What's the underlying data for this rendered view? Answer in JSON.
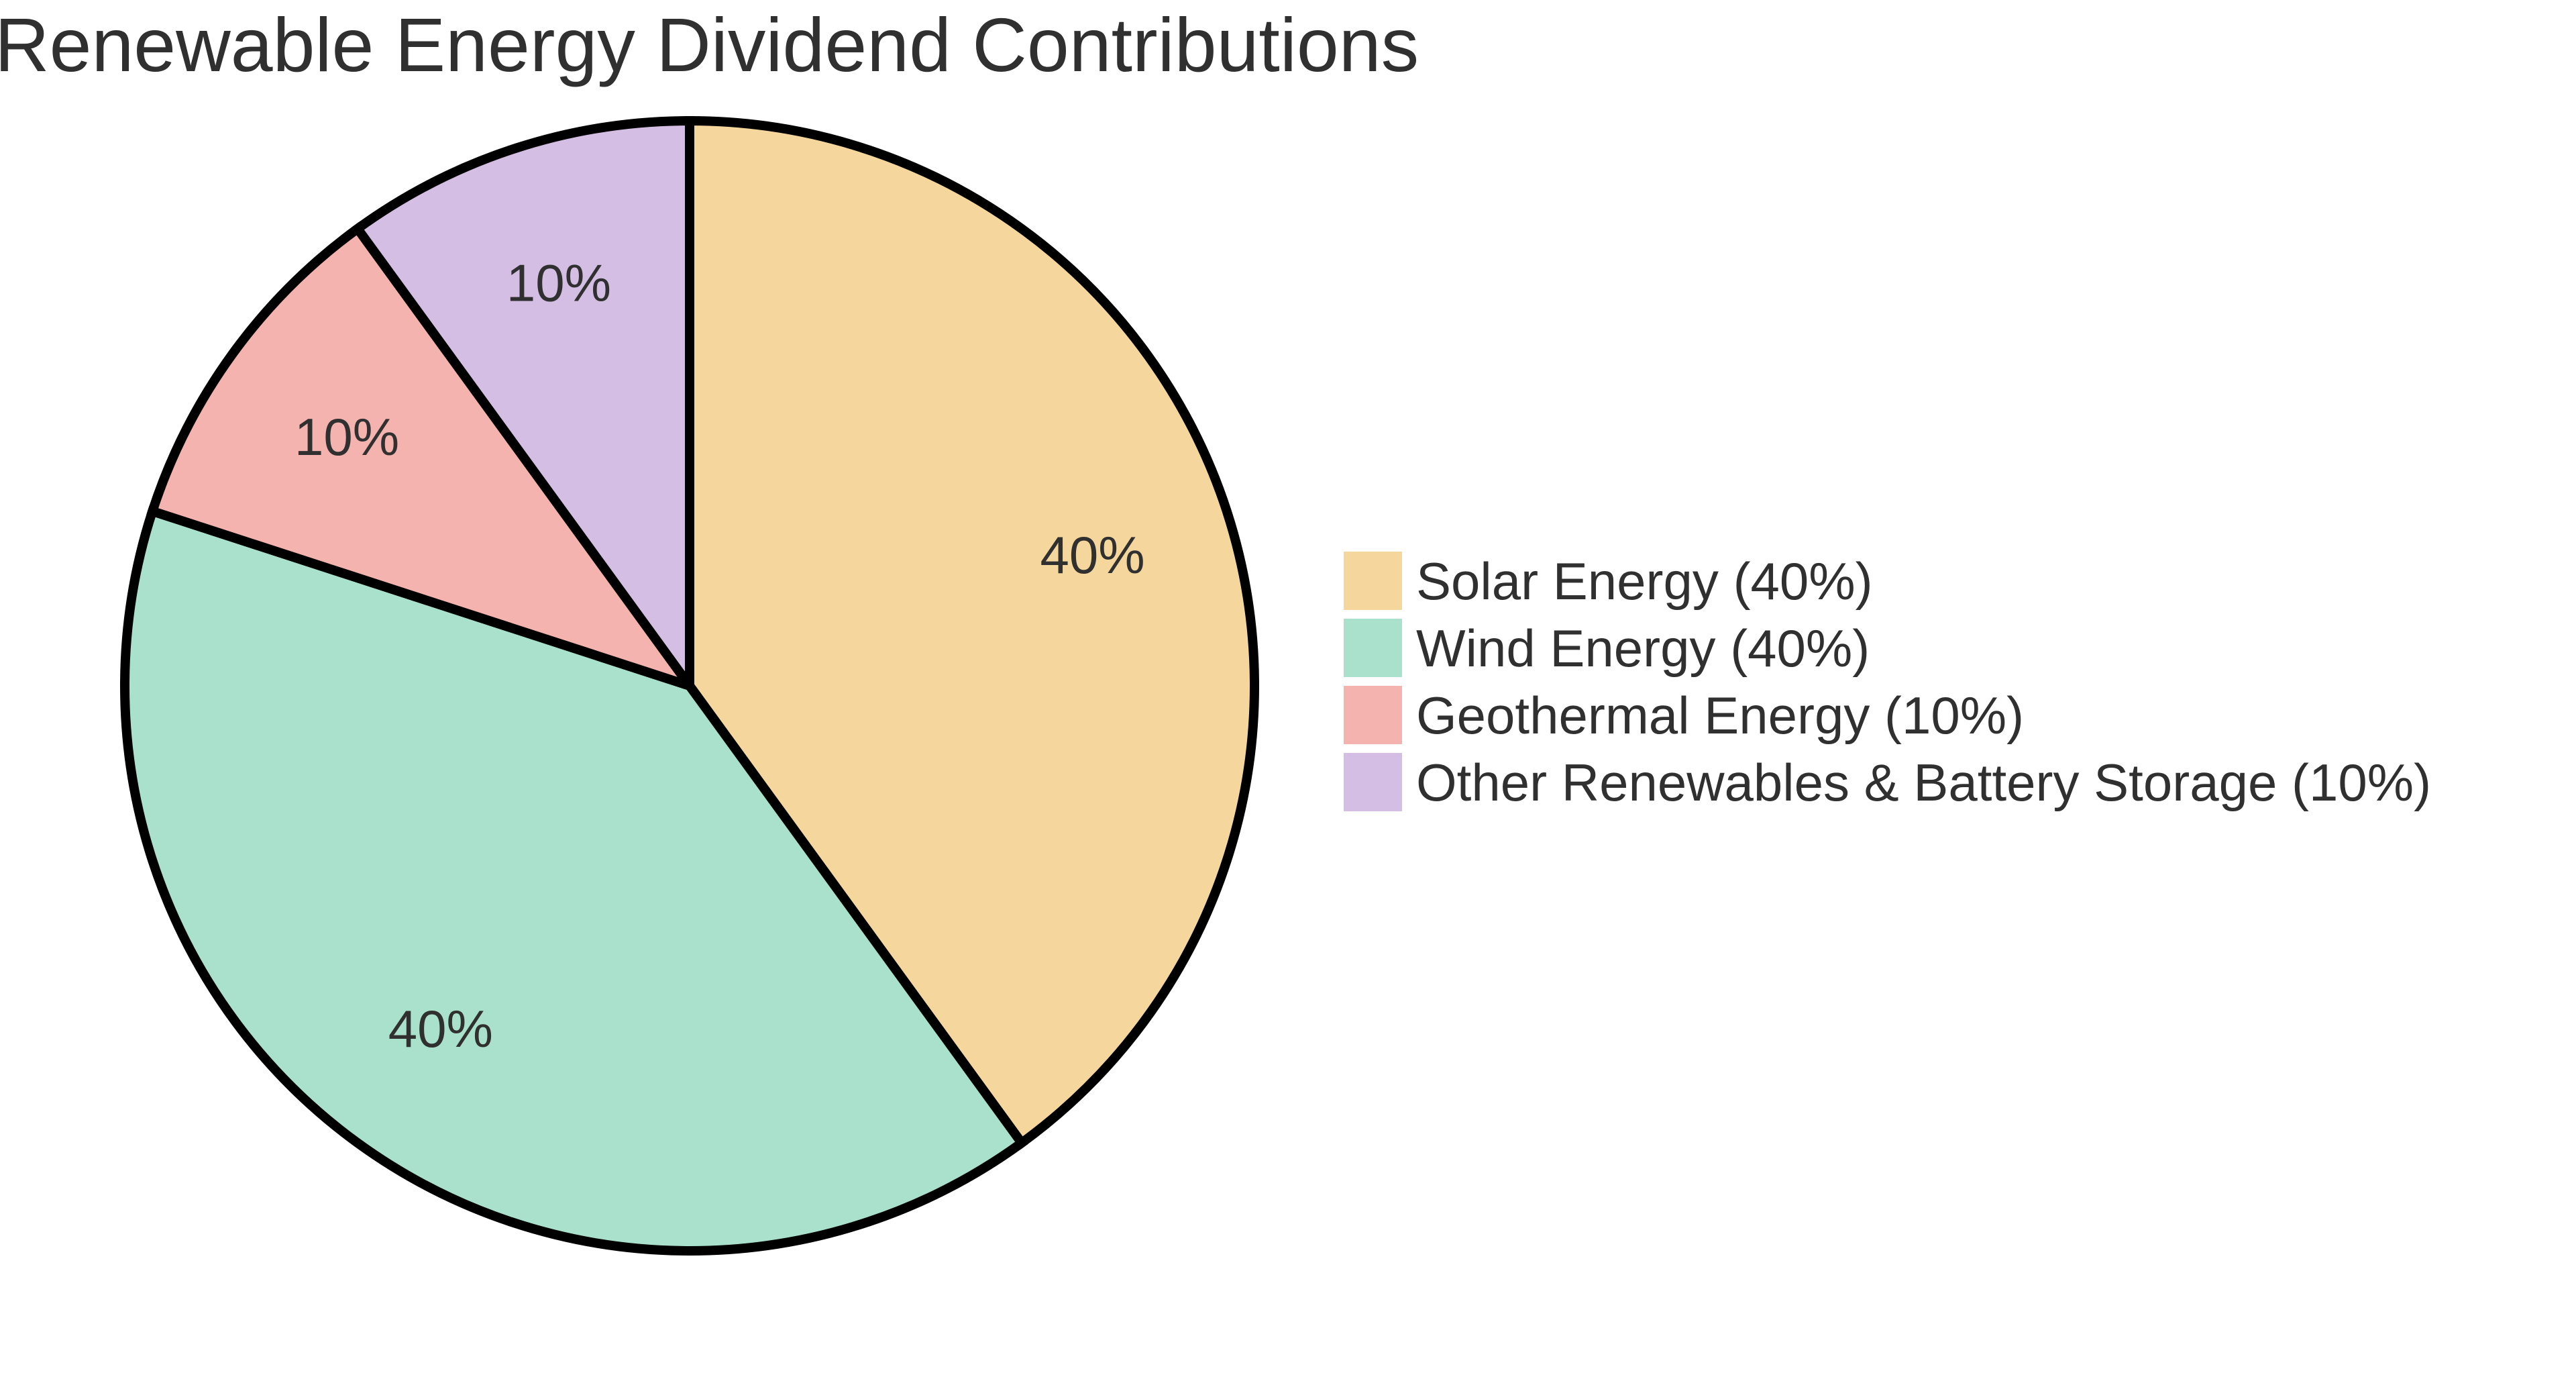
{
  "chart_data": {
    "type": "pie",
    "title": "Renewable Energy Dividend Contributions",
    "slices": [
      {
        "label": "Solar Energy",
        "value": 40,
        "pct_label": "40%",
        "color": "#F5D69C",
        "legend_label": "Solar Energy (40%)"
      },
      {
        "label": "Wind Energy",
        "value": 40,
        "pct_label": "40%",
        "color": "#A9E1CC",
        "legend_label": "Wind Energy (40%)"
      },
      {
        "label": "Geothermal Energy",
        "value": 10,
        "pct_label": "10%",
        "color": "#F4B3AE",
        "legend_label": "Geothermal Energy (10%)"
      },
      {
        "label": "Other Renewables & Battery Storage",
        "value": 10,
        "pct_label": "10%",
        "color": "#D5BEE4",
        "legend_label": "Other Renewables & Battery Storage (10%)"
      }
    ],
    "start_angle_deg": 90,
    "direction": "clockwise",
    "stroke_color": "#000000",
    "stroke_width": 14,
    "text_color": "#303030",
    "legend_position": "right",
    "grid": false
  }
}
